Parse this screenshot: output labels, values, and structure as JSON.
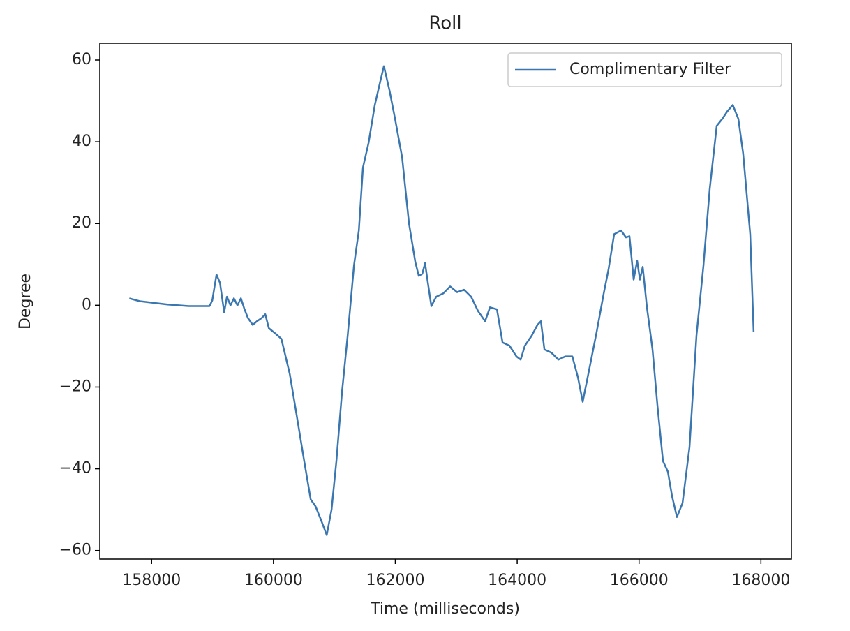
{
  "chart_data": {
    "type": "line",
    "title": "Roll",
    "x_label": "Time (milliseconds)",
    "y_label": "Degree",
    "x": [
      157634,
      157805,
      158263,
      158607,
      158950,
      158996,
      159065,
      159122,
      159191,
      159237,
      159294,
      159351,
      159408,
      159466,
      159523,
      159580,
      159660,
      159729,
      159809,
      159866,
      159924,
      160038,
      160130,
      160267,
      160382,
      160496,
      160611,
      160691,
      160783,
      160874,
      160954,
      161034,
      161126,
      161218,
      161321,
      161401,
      161469,
      161561,
      161664,
      161756,
      161813,
      161905,
      161996,
      162111,
      162225,
      162328,
      162385,
      162443,
      162488,
      162534,
      162591,
      162671,
      162786,
      162900,
      163015,
      163129,
      163244,
      163358,
      163473,
      163553,
      163668,
      163759,
      163874,
      163988,
      164057,
      164126,
      164240,
      164332,
      164389,
      164447,
      164561,
      164676,
      164790,
      164905,
      164996,
      165076,
      165191,
      165305,
      165420,
      165500,
      165591,
      165706,
      165786,
      165843,
      165912,
      165969,
      166015,
      166061,
      166129,
      166221,
      166301,
      166393,
      166473,
      166542,
      166622,
      166713,
      166828,
      166942,
      167057,
      167160,
      167274,
      167366,
      167446,
      167538,
      167629,
      167709,
      167824,
      167880
    ],
    "series": [
      {
        "name": "Complimentary Filter",
        "color": "#3a76af",
        "values": [
          1.7,
          1.0,
          0.2,
          -0.2,
          -0.2,
          1.2,
          7.5,
          5.5,
          -1.7,
          2.1,
          0,
          1.7,
          0,
          1.7,
          -0.9,
          -3.1,
          -4.8,
          -3.9,
          -3.1,
          -2.2,
          -5.6,
          -7.0,
          -8.2,
          -16.8,
          -27,
          -37.3,
          -47.5,
          -49.2,
          -52.6,
          -56.2,
          -50,
          -38,
          -21,
          -7.4,
          9.7,
          18.3,
          33.7,
          39.7,
          49,
          55,
          58.5,
          52.5,
          45.6,
          36.2,
          20,
          10.6,
          7.2,
          7.7,
          10.3,
          5.5,
          -0.2,
          2.1,
          2.9,
          4.6,
          3.2,
          3.8,
          2.1,
          -1.4,
          -3.9,
          -0.5,
          -1.0,
          -9.1,
          -9.9,
          -12.5,
          -13.3,
          -9.9,
          -7.4,
          -4.8,
          -3.9,
          -10.8,
          -11.6,
          -13.3,
          -12.5,
          -12.5,
          -17.6,
          -23.6,
          -15,
          -6.5,
          2.9,
          8.9,
          17.4,
          18.3,
          16.6,
          16.9,
          6.3,
          10.9,
          6.3,
          9.4,
          -0.5,
          -10.8,
          -24.4,
          -38.1,
          -40.7,
          -46.7,
          -51.8,
          -48.4,
          -34.7,
          -7.4,
          9.7,
          28.5,
          43.9,
          45.6,
          47.4,
          49,
          45.6,
          37.1,
          17.4,
          -6.5
        ]
      }
    ],
    "xlim": [
      157150,
      168500
    ],
    "ylim": [
      -62.1,
      64.1
    ],
    "xticks": [
      158000,
      160000,
      162000,
      164000,
      166000,
      168000
    ],
    "yticks": [
      {
        "value": -60,
        "label": "−60"
      },
      {
        "value": -40,
        "label": "−40"
      },
      {
        "value": -20,
        "label": "−20"
      },
      0,
      20,
      40,
      60
    ],
    "legend": "upper right"
  }
}
